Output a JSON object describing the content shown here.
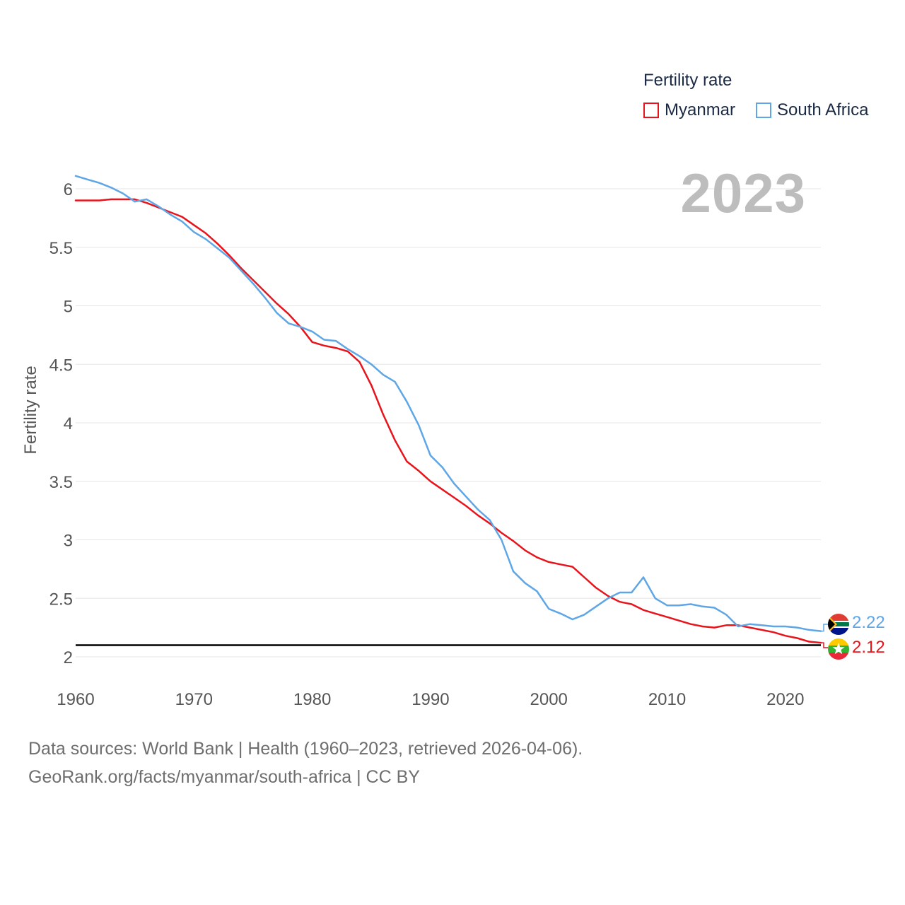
{
  "legend": {
    "title": "Fertility rate",
    "items": [
      {
        "name": "Myanmar",
        "color": "#e8141c"
      },
      {
        "name": "South Africa",
        "color": "#5ea6e6"
      }
    ]
  },
  "current_year": "2023",
  "end_labels": {
    "myanmar": "2.12",
    "south_africa": "2.22"
  },
  "flags": {
    "myanmar": "myanmar-flag-icon",
    "south_africa": "south-africa-flag-icon"
  },
  "footer": {
    "line1": "Data sources: World Bank | Health (1960–2023, retrieved 2026-04-06).",
    "line2": "GeoRank.org/facts/myanmar/south-africa | CC BY"
  },
  "chart_data": {
    "type": "line",
    "title": "Fertility rate",
    "xlabel": "",
    "ylabel": "Fertility rate",
    "xlim": [
      1960,
      2023
    ],
    "ylim": [
      2,
      6.2
    ],
    "x_ticks": [
      1960,
      1970,
      1980,
      1990,
      2000,
      2010,
      2020
    ],
    "y_ticks": [
      2,
      2.5,
      3,
      3.5,
      4,
      4.5,
      5,
      5.5,
      6
    ],
    "reference_line": 2.1,
    "grid": true,
    "legend_position": "top-right",
    "x": [
      1960,
      1961,
      1962,
      1963,
      1964,
      1965,
      1966,
      1967,
      1968,
      1969,
      1970,
      1971,
      1972,
      1973,
      1974,
      1975,
      1976,
      1977,
      1978,
      1979,
      1980,
      1981,
      1982,
      1983,
      1984,
      1985,
      1986,
      1987,
      1988,
      1989,
      1990,
      1991,
      1992,
      1993,
      1994,
      1995,
      1996,
      1997,
      1998,
      1999,
      2000,
      2001,
      2002,
      2003,
      2004,
      2005,
      2006,
      2007,
      2008,
      2009,
      2010,
      2011,
      2012,
      2013,
      2014,
      2015,
      2016,
      2017,
      2018,
      2019,
      2020,
      2021,
      2022,
      2023
    ],
    "series": [
      {
        "name": "Myanmar",
        "color": "#e8141c",
        "values": [
          5.9,
          5.9,
          5.9,
          5.91,
          5.91,
          5.91,
          5.88,
          5.84,
          5.8,
          5.76,
          5.69,
          5.62,
          5.53,
          5.43,
          5.32,
          5.22,
          5.12,
          5.02,
          4.93,
          4.82,
          4.69,
          4.66,
          4.64,
          4.61,
          4.52,
          4.32,
          4.07,
          3.85,
          3.67,
          3.59,
          3.5,
          3.43,
          3.36,
          3.29,
          3.21,
          3.14,
          3.06,
          2.99,
          2.91,
          2.85,
          2.81,
          2.79,
          2.77,
          2.68,
          2.59,
          2.52,
          2.47,
          2.45,
          2.4,
          2.37,
          2.34,
          2.31,
          2.28,
          2.26,
          2.25,
          2.27,
          2.27,
          2.25,
          2.23,
          2.21,
          2.18,
          2.16,
          2.13,
          2.12
        ]
      },
      {
        "name": "South Africa",
        "color": "#5ea6e6",
        "values": [
          6.11,
          6.08,
          6.05,
          6.01,
          5.96,
          5.89,
          5.91,
          5.85,
          5.78,
          5.72,
          5.63,
          5.57,
          5.49,
          5.41,
          5.3,
          5.19,
          5.07,
          4.94,
          4.85,
          4.82,
          4.78,
          4.71,
          4.7,
          4.63,
          4.57,
          4.5,
          4.41,
          4.35,
          4.18,
          3.98,
          3.72,
          3.62,
          3.48,
          3.37,
          3.26,
          3.17,
          3.0,
          2.73,
          2.63,
          2.56,
          2.41,
          2.37,
          2.32,
          2.36,
          2.43,
          2.5,
          2.55,
          2.55,
          2.68,
          2.5,
          2.44,
          2.44,
          2.45,
          2.43,
          2.42,
          2.36,
          2.26,
          2.28,
          2.27,
          2.26,
          2.26,
          2.25,
          2.23,
          2.22
        ]
      }
    ]
  }
}
